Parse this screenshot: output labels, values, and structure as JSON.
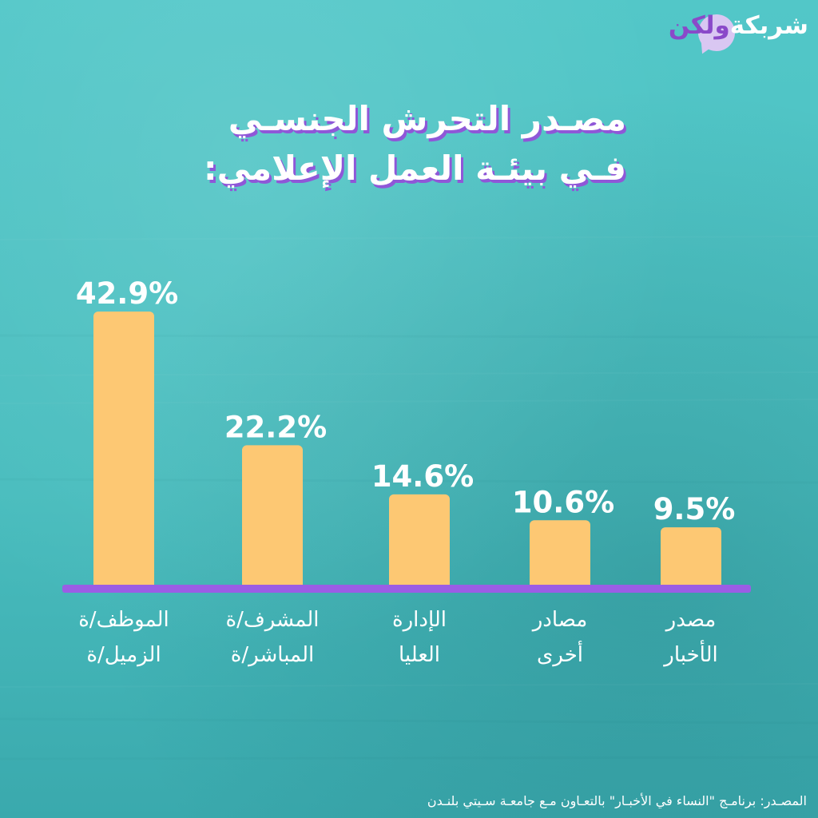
{
  "logo": {
    "word_right": "شربكة",
    "word_left": "ولكن",
    "icon": "speech-bubble-icon"
  },
  "header": {
    "title_line1": "مصـدر التحرش الجنسـي",
    "title_line2": "فـي بيئـة العمل الإعلامي:"
  },
  "chart_data": {
    "type": "bar",
    "title": "مصـدر التحرش الجنسـي فـي بيئـة العمل الإعلامي:",
    "categories": [
      [
        "الموظف/ة",
        "الزميل/ة"
      ],
      [
        "المشرف/ة",
        "المباشر/ة"
      ],
      [
        "الإدارة",
        "العليا"
      ],
      [
        "مصادر",
        "أخرى"
      ],
      [
        "مصدر",
        "الأخبار"
      ]
    ],
    "values": [
      42.9,
      22.2,
      14.6,
      10.6,
      9.5
    ],
    "value_labels": [
      "42.9%",
      "22.2%",
      "14.6%",
      "10.6%",
      "9.5%"
    ],
    "unit": "%",
    "ylim": [
      0,
      42.9
    ],
    "grid": false,
    "legend": "none",
    "colors": {
      "bar": "#fdc873",
      "baseline": "#9b5de5",
      "title_shadow": "#8f57d8",
      "background": "#4fc3c4"
    }
  },
  "footer": {
    "source": "المصـدر:  برنامـج \"النساء في الأخبـار\" بالتعـاون مـع جامعـة سـيتي بلنـدن"
  }
}
